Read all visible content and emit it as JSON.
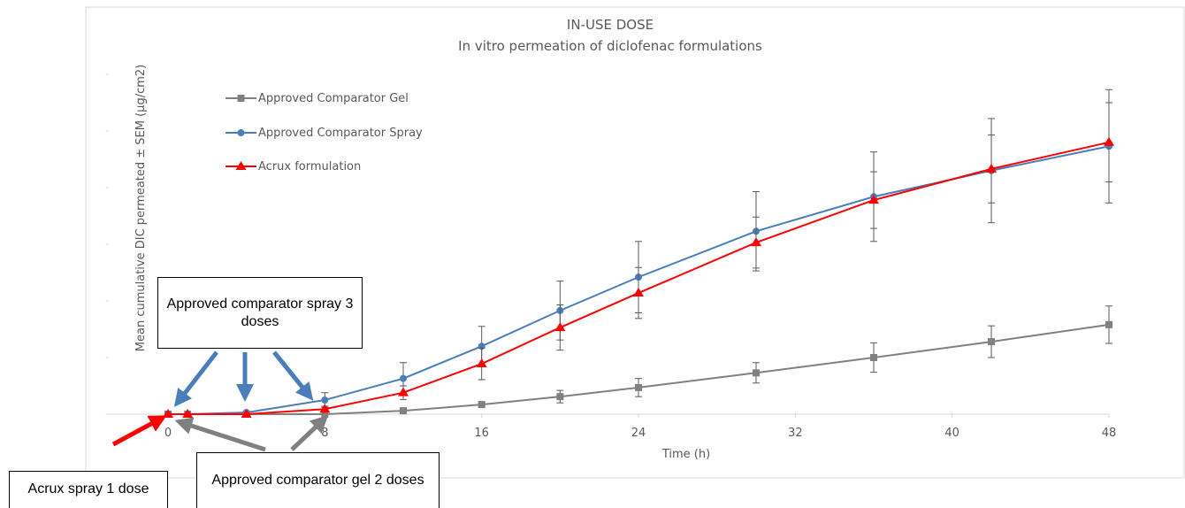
{
  "chart_data": {
    "type": "line",
    "title": "IN-USE DOSE",
    "subtitle": "In vitro permeation of diclofenac formulations",
    "x_label": "Time (h)",
    "y_label": "Mean cumulative DIC permeated ± SEM (µg/cm2)",
    "x": [
      0,
      1,
      4,
      8,
      12,
      16,
      20,
      24,
      30,
      36,
      42,
      48
    ],
    "xlim": [
      -3,
      48
    ],
    "xticks": [
      0,
      8,
      16,
      24,
      32,
      40,
      48
    ],
    "ylim": [
      0,
      7
    ],
    "yticks": [
      0,
      1,
      2,
      3,
      4,
      5,
      6
    ],
    "series": [
      {
        "name": "Approved Comparator Gel",
        "color": "#808080",
        "marker": "square",
        "values": [
          0,
          0,
          0,
          0,
          0.06,
          0.17,
          0.31,
          0.47,
          0.73,
          1.0,
          1.28,
          1.58
        ],
        "errors": [
          0,
          0,
          0,
          0,
          0.02,
          0.05,
          0.11,
          0.16,
          0.18,
          0.26,
          0.28,
          0.33
        ]
      },
      {
        "name": "Approved Comparator Spray",
        "color": "#4a7ebb",
        "marker": "circle",
        "values": [
          0,
          0,
          0.03,
          0.25,
          0.63,
          1.2,
          1.83,
          2.42,
          3.23,
          3.84,
          4.3,
          4.73
        ],
        "errors": [
          0,
          0,
          0.02,
          0.13,
          0.28,
          0.35,
          0.52,
          0.63,
          0.7,
          0.79,
          0.92,
          1.0
        ]
      },
      {
        "name": "Acrux formulation",
        "color": "#ff0000",
        "marker": "triangle",
        "values": [
          0,
          0,
          0,
          0.09,
          0.38,
          0.89,
          1.53,
          2.14,
          3.03,
          3.78,
          4.33,
          4.8
        ],
        "errors": [
          0,
          0,
          0,
          0.05,
          0.12,
          0.28,
          0.4,
          0.45,
          0.45,
          0.5,
          0.6,
          0.7
        ]
      }
    ],
    "annotations": [
      "Approved comparator spray 3 doses",
      "Acrux spray 1 dose",
      "Approved comparator gel 2 doses"
    ]
  }
}
